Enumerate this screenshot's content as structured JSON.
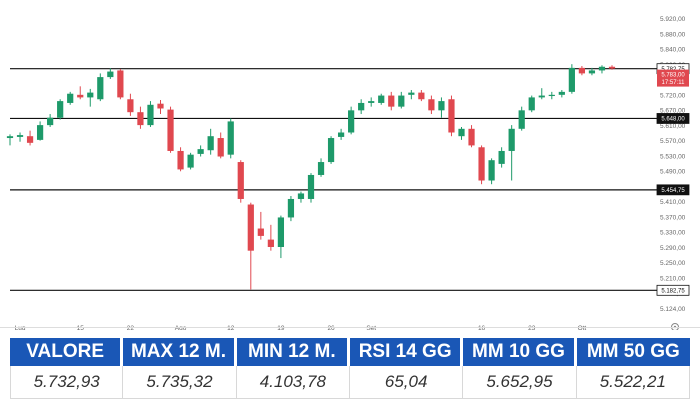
{
  "chart_data": {
    "type": "candlestick",
    "y_ticks": [
      "5.920,00",
      "5.880,00",
      "5.840,00",
      "5.800,00",
      "5.760,00",
      "5.720,00",
      "5.670,00",
      "5.610,00",
      "5.570,00",
      "5.530,00",
      "5.490,00",
      "5.450,00",
      "5.410,00",
      "5.370,00",
      "5.330,00",
      "5.290,00",
      "5.250,00",
      "5.210,00",
      "5.170,00",
      "5.124,00"
    ],
    "ylim": [
      5124,
      5920
    ],
    "x_ticks": [
      {
        "label": "Lug",
        "index": 1
      },
      {
        "label": "15",
        "index": 7
      },
      {
        "label": "22",
        "index": 12
      },
      {
        "label": "Ago",
        "index": 17
      },
      {
        "label": "12",
        "index": 22
      },
      {
        "label": "19",
        "index": 27
      },
      {
        "label": "26",
        "index": 32
      },
      {
        "label": "Set",
        "index": 36
      },
      {
        "label": "16",
        "index": 47
      },
      {
        "label": "23",
        "index": 52
      },
      {
        "label": "Ott",
        "index": 57
      }
    ],
    "levels": [
      {
        "value": 5782.75,
        "label": "5.782,75",
        "style": "outline"
      },
      {
        "value": 5648.0,
        "label": "5.648,00",
        "style": "dark"
      },
      {
        "value": 5454.75,
        "label": "5.454,75",
        "style": "dark"
      },
      {
        "value": 5182.75,
        "label": "5.182,75",
        "style": "outline"
      }
    ],
    "current_price": {
      "label": "5.783,00",
      "countdown": "17:57:11"
    },
    "candles": [
      {
        "o": 5595,
        "h": 5605,
        "l": 5575,
        "c": 5600
      },
      {
        "o": 5598,
        "h": 5610,
        "l": 5585,
        "c": 5603
      },
      {
        "o": 5600,
        "h": 5615,
        "l": 5575,
        "c": 5582
      },
      {
        "o": 5590,
        "h": 5640,
        "l": 5588,
        "c": 5630
      },
      {
        "o": 5630,
        "h": 5660,
        "l": 5625,
        "c": 5650
      },
      {
        "o": 5650,
        "h": 5700,
        "l": 5645,
        "c": 5695
      },
      {
        "o": 5690,
        "h": 5720,
        "l": 5685,
        "c": 5715
      },
      {
        "o": 5712,
        "h": 5735,
        "l": 5700,
        "c": 5705
      },
      {
        "o": 5705,
        "h": 5728,
        "l": 5680,
        "c": 5718
      },
      {
        "o": 5700,
        "h": 5770,
        "l": 5695,
        "c": 5760
      },
      {
        "o": 5760,
        "h": 5784,
        "l": 5755,
        "c": 5775
      },
      {
        "o": 5778,
        "h": 5782,
        "l": 5700,
        "c": 5705
      },
      {
        "o": 5700,
        "h": 5715,
        "l": 5655,
        "c": 5665
      },
      {
        "o": 5665,
        "h": 5680,
        "l": 5620,
        "c": 5630
      },
      {
        "o": 5630,
        "h": 5695,
        "l": 5625,
        "c": 5685
      },
      {
        "o": 5688,
        "h": 5698,
        "l": 5660,
        "c": 5675
      },
      {
        "o": 5672,
        "h": 5680,
        "l": 5555,
        "c": 5560
      },
      {
        "o": 5560,
        "h": 5570,
        "l": 5505,
        "c": 5510
      },
      {
        "o": 5515,
        "h": 5555,
        "l": 5510,
        "c": 5550
      },
      {
        "o": 5552,
        "h": 5575,
        "l": 5545,
        "c": 5565
      },
      {
        "o": 5562,
        "h": 5620,
        "l": 5550,
        "c": 5600
      },
      {
        "o": 5595,
        "h": 5610,
        "l": 5540,
        "c": 5545
      },
      {
        "o": 5550,
        "h": 5648,
        "l": 5540,
        "c": 5640
      },
      {
        "o": 5530,
        "h": 5535,
        "l": 5420,
        "c": 5430
      },
      {
        "o": 5415,
        "h": 5420,
        "l": 5185,
        "c": 5290
      },
      {
        "o": 5350,
        "h": 5395,
        "l": 5320,
        "c": 5330
      },
      {
        "o": 5320,
        "h": 5360,
        "l": 5290,
        "c": 5300
      },
      {
        "o": 5300,
        "h": 5385,
        "l": 5270,
        "c": 5380
      },
      {
        "o": 5380,
        "h": 5438,
        "l": 5370,
        "c": 5430
      },
      {
        "o": 5430,
        "h": 5450,
        "l": 5420,
        "c": 5445
      },
      {
        "o": 5430,
        "h": 5500,
        "l": 5420,
        "c": 5495
      },
      {
        "o": 5495,
        "h": 5540,
        "l": 5490,
        "c": 5530
      },
      {
        "o": 5530,
        "h": 5600,
        "l": 5525,
        "c": 5595
      },
      {
        "o": 5598,
        "h": 5620,
        "l": 5590,
        "c": 5610
      },
      {
        "o": 5610,
        "h": 5680,
        "l": 5605,
        "c": 5670
      },
      {
        "o": 5670,
        "h": 5700,
        "l": 5660,
        "c": 5690
      },
      {
        "o": 5690,
        "h": 5705,
        "l": 5680,
        "c": 5695
      },
      {
        "o": 5690,
        "h": 5715,
        "l": 5685,
        "c": 5710
      },
      {
        "o": 5710,
        "h": 5720,
        "l": 5670,
        "c": 5680
      },
      {
        "o": 5680,
        "h": 5720,
        "l": 5675,
        "c": 5710
      },
      {
        "o": 5712,
        "h": 5725,
        "l": 5700,
        "c": 5718
      },
      {
        "o": 5718,
        "h": 5725,
        "l": 5695,
        "c": 5700
      },
      {
        "o": 5700,
        "h": 5710,
        "l": 5660,
        "c": 5670
      },
      {
        "o": 5670,
        "h": 5705,
        "l": 5650,
        "c": 5695
      },
      {
        "o": 5700,
        "h": 5710,
        "l": 5600,
        "c": 5610
      },
      {
        "o": 5600,
        "h": 5625,
        "l": 5590,
        "c": 5620
      },
      {
        "o": 5620,
        "h": 5630,
        "l": 5570,
        "c": 5575
      },
      {
        "o": 5570,
        "h": 5575,
        "l": 5470,
        "c": 5480
      },
      {
        "o": 5480,
        "h": 5540,
        "l": 5470,
        "c": 5535
      },
      {
        "o": 5525,
        "h": 5570,
        "l": 5515,
        "c": 5560
      },
      {
        "o": 5560,
        "h": 5630,
        "l": 5480,
        "c": 5620
      },
      {
        "o": 5620,
        "h": 5680,
        "l": 5615,
        "c": 5670
      },
      {
        "o": 5670,
        "h": 5710,
        "l": 5665,
        "c": 5705
      },
      {
        "o": 5705,
        "h": 5730,
        "l": 5700,
        "c": 5710
      },
      {
        "o": 5710,
        "h": 5720,
        "l": 5700,
        "c": 5712
      },
      {
        "o": 5712,
        "h": 5725,
        "l": 5705,
        "c": 5720
      },
      {
        "o": 5720,
        "h": 5795,
        "l": 5715,
        "c": 5785
      },
      {
        "o": 5785,
        "h": 5790,
        "l": 5765,
        "c": 5770
      },
      {
        "o": 5770,
        "h": 5785,
        "l": 5765,
        "c": 5778
      },
      {
        "o": 5778,
        "h": 5792,
        "l": 5770,
        "c": 5788
      },
      {
        "o": 5788,
        "h": 5792,
        "l": 5780,
        "c": 5783
      }
    ],
    "colors": {
      "up": "#1e9a6a",
      "down": "#e0484f",
      "level": "#111111",
      "axis_text": "#666666"
    }
  },
  "table": {
    "headers": [
      "VALORE",
      "MAX 12 M.",
      "MIN 12 M.",
      "RSI 14 GG",
      "MM 10 GG",
      "MM 50 GG"
    ],
    "values": [
      "5.732,93",
      "5.735,32",
      "4.103,78",
      "65,04",
      "5.652,95",
      "5.522,21"
    ],
    "header_color": "#1a57b6"
  }
}
